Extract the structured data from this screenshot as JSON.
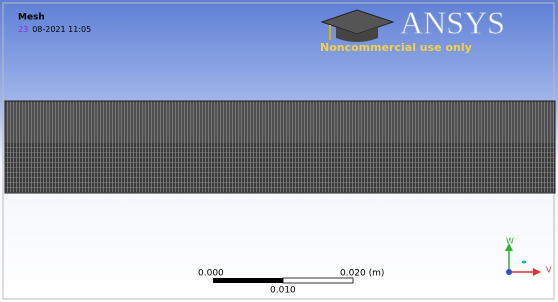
{
  "viewport": {
    "title": "Mesh",
    "date_day": "23",
    "date_rest": "08-2021 11:05"
  },
  "logo": {
    "brand": "ANSYS",
    "notice": "Noncommercial use only"
  },
  "scale_bar": {
    "left": "0.000",
    "right": "0.020 (m)",
    "middle": "0.010"
  },
  "triad": {
    "up": "W",
    "right": "V"
  }
}
